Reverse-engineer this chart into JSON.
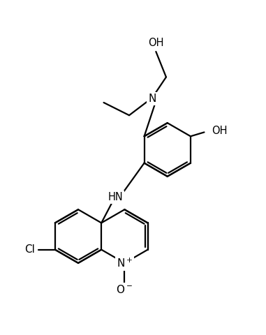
{
  "bg_color": "#ffffff",
  "line_color": "#000000",
  "line_width": 1.6,
  "font_size": 10.5,
  "figsize": [
    3.81,
    4.8
  ],
  "dpi": 100,
  "xlim": [
    0,
    10
  ],
  "ylim": [
    0,
    13
  ]
}
